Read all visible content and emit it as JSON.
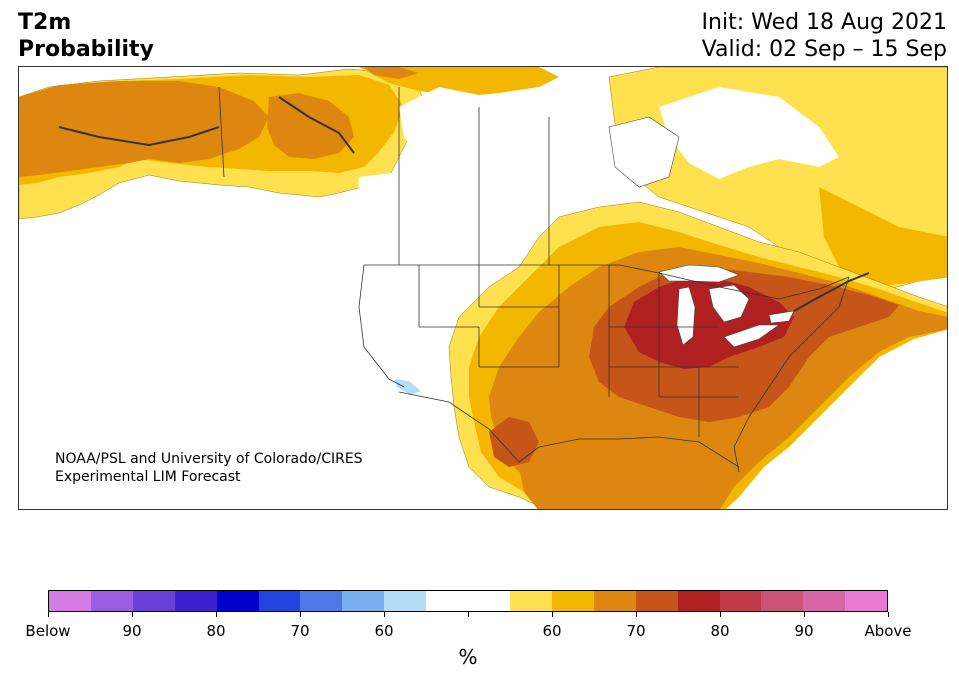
{
  "header": {
    "title_line1": "T2m",
    "title_line2": "Probability",
    "init": "Init: Wed 18 Aug 2021",
    "valid": "Valid: 02 Sep – 15 Sep"
  },
  "map": {
    "region": "North America",
    "credit_line1": "NOAA/PSL and University of Colorado/CIRES",
    "credit_line2": "Experimental LIM Forecast"
  },
  "colorbar": {
    "unit": "%",
    "swatches": [
      "#d67ae6",
      "#9a5ce0",
      "#6a3fd8",
      "#3d20d2",
      "#0000cc",
      "#2244dd",
      "#4d78e6",
      "#78afee",
      "#b3ddf7",
      "#ffffff",
      "#ffffff",
      "#ffe150",
      "#f3b700",
      "#de8710",
      "#c55518",
      "#b02020",
      "#c03a4a",
      "#cc5478",
      "#d866a6",
      "#e87ad6"
    ],
    "labels": [
      "Below",
      "90",
      "80",
      "70",
      "60",
      "",
      "60",
      "70",
      "80",
      "90",
      "Above"
    ],
    "colors": {
      "above_60": "#ffe150",
      "above_70": "#f3b700",
      "above_80": "#de8710",
      "above_90": "#c55518",
      "above_max": "#b02020"
    }
  }
}
